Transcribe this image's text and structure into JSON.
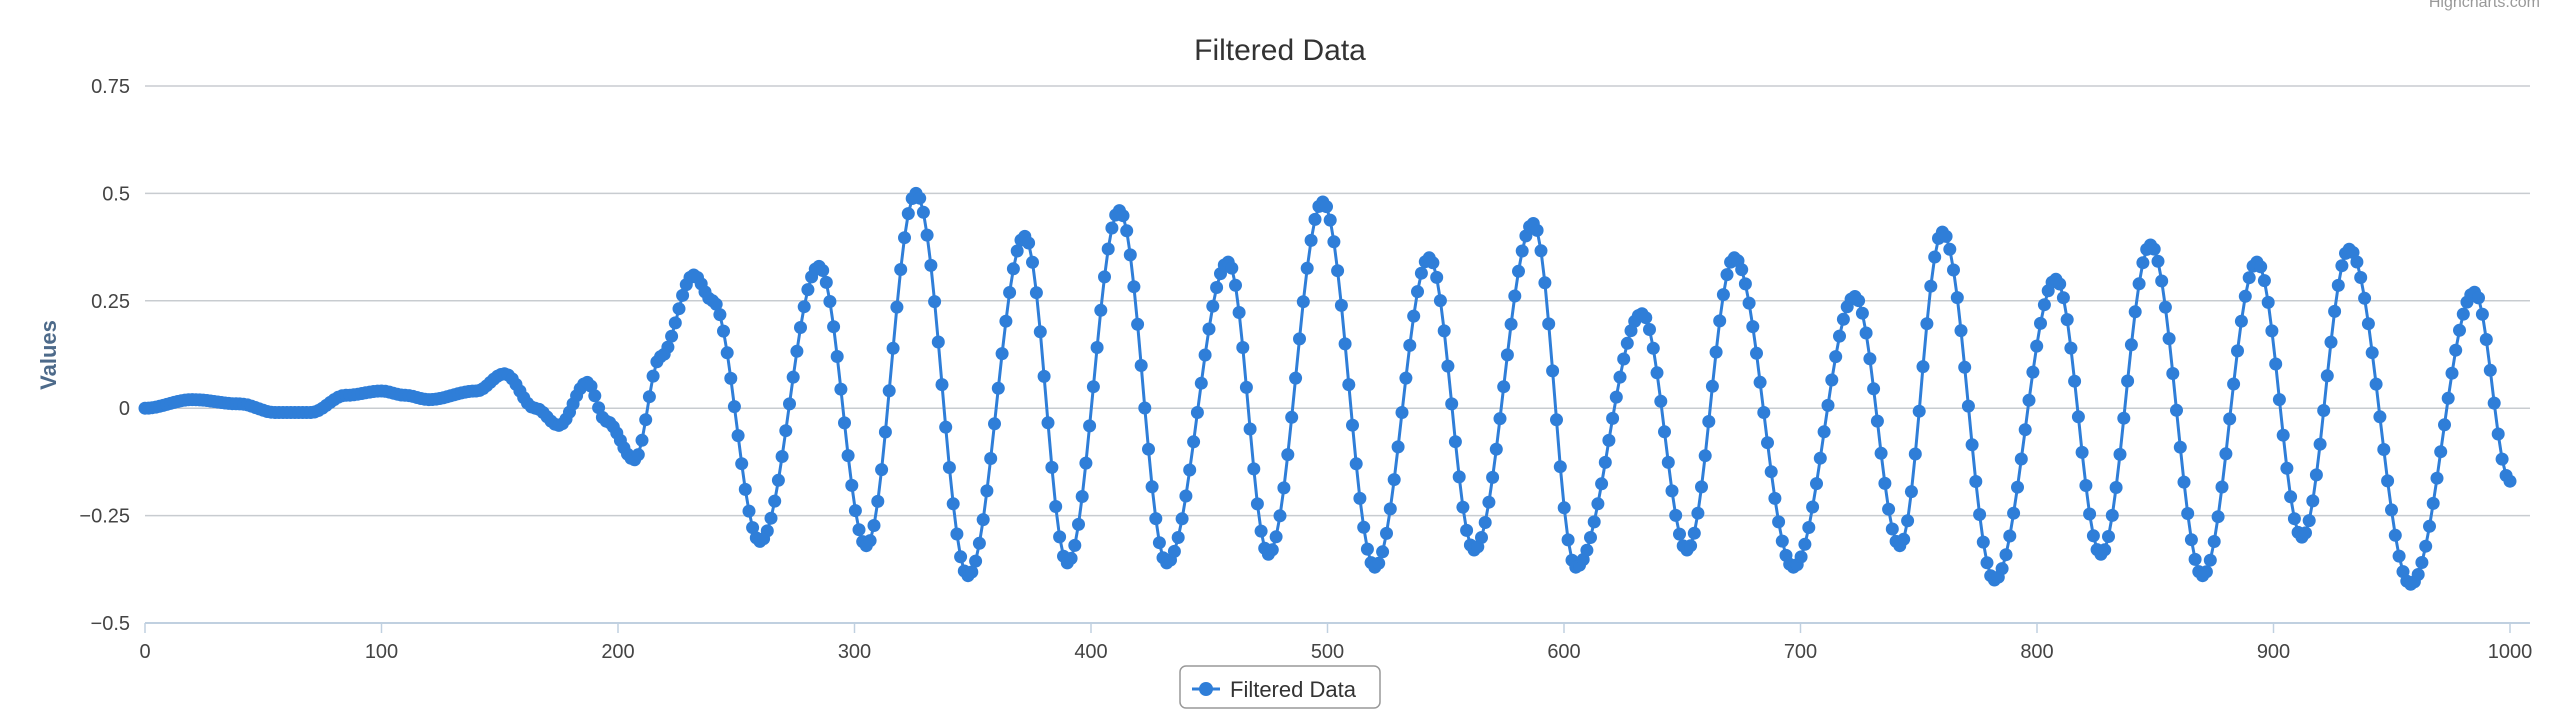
{
  "credits": "Highcharts.com",
  "chart_data": {
    "type": "line",
    "title": "Filtered Data",
    "ylabel": "Values",
    "xlabel": "",
    "xlim": [
      0,
      1000
    ],
    "ylim": [
      -0.5,
      0.75
    ],
    "x_ticks": [
      0,
      100,
      200,
      300,
      400,
      500,
      600,
      700,
      800,
      900,
      1000
    ],
    "y_ticks": [
      -0.5,
      -0.25,
      0,
      0.25,
      0.5,
      0.75
    ],
    "y_tick_labels": [
      "−0.5",
      "−0.25",
      "0",
      "0.25",
      "0.5",
      "0.75"
    ],
    "grid": true,
    "legend_position": "bottom-center",
    "color": "#2f7ed8",
    "series": [
      {
        "name": "Filtered Data",
        "marker": "circle",
        "points": [
          [
            0,
            0.0
          ],
          [
            20,
            0.02
          ],
          [
            40,
            0.01
          ],
          [
            55,
            -0.01
          ],
          [
            70,
            -0.01
          ],
          [
            85,
            0.03
          ],
          [
            100,
            0.04
          ],
          [
            110,
            0.03
          ],
          [
            120,
            0.02
          ],
          [
            140,
            0.04
          ],
          [
            152,
            0.08
          ],
          [
            165,
            0.0
          ],
          [
            175,
            -0.04
          ],
          [
            187,
            0.06
          ],
          [
            195,
            -0.03
          ],
          [
            207,
            -0.12
          ],
          [
            218,
            0.12
          ],
          [
            232,
            0.31
          ],
          [
            240,
            0.25
          ],
          [
            260,
            -0.31
          ],
          [
            285,
            0.33
          ],
          [
            305,
            -0.32
          ],
          [
            326,
            0.5
          ],
          [
            348,
            -0.39
          ],
          [
            372,
            0.4
          ],
          [
            390,
            -0.36
          ],
          [
            412,
            0.46
          ],
          [
            432,
            -0.36
          ],
          [
            458,
            0.34
          ],
          [
            475,
            -0.34
          ],
          [
            498,
            0.48
          ],
          [
            520,
            -0.37
          ],
          [
            543,
            0.35
          ],
          [
            562,
            -0.33
          ],
          [
            587,
            0.43
          ],
          [
            605,
            -0.37
          ],
          [
            633,
            0.22
          ],
          [
            652,
            -0.33
          ],
          [
            672,
            0.35
          ],
          [
            697,
            -0.37
          ],
          [
            723,
            0.26
          ],
          [
            742,
            -0.32
          ],
          [
            760,
            0.41
          ],
          [
            782,
            -0.4
          ],
          [
            808,
            0.3
          ],
          [
            827,
            -0.34
          ],
          [
            848,
            0.38
          ],
          [
            870,
            -0.39
          ],
          [
            893,
            0.34
          ],
          [
            912,
            -0.3
          ],
          [
            932,
            0.37
          ],
          [
            958,
            -0.41
          ],
          [
            985,
            0.27
          ],
          [
            1000,
            -0.17
          ]
        ]
      }
    ]
  }
}
